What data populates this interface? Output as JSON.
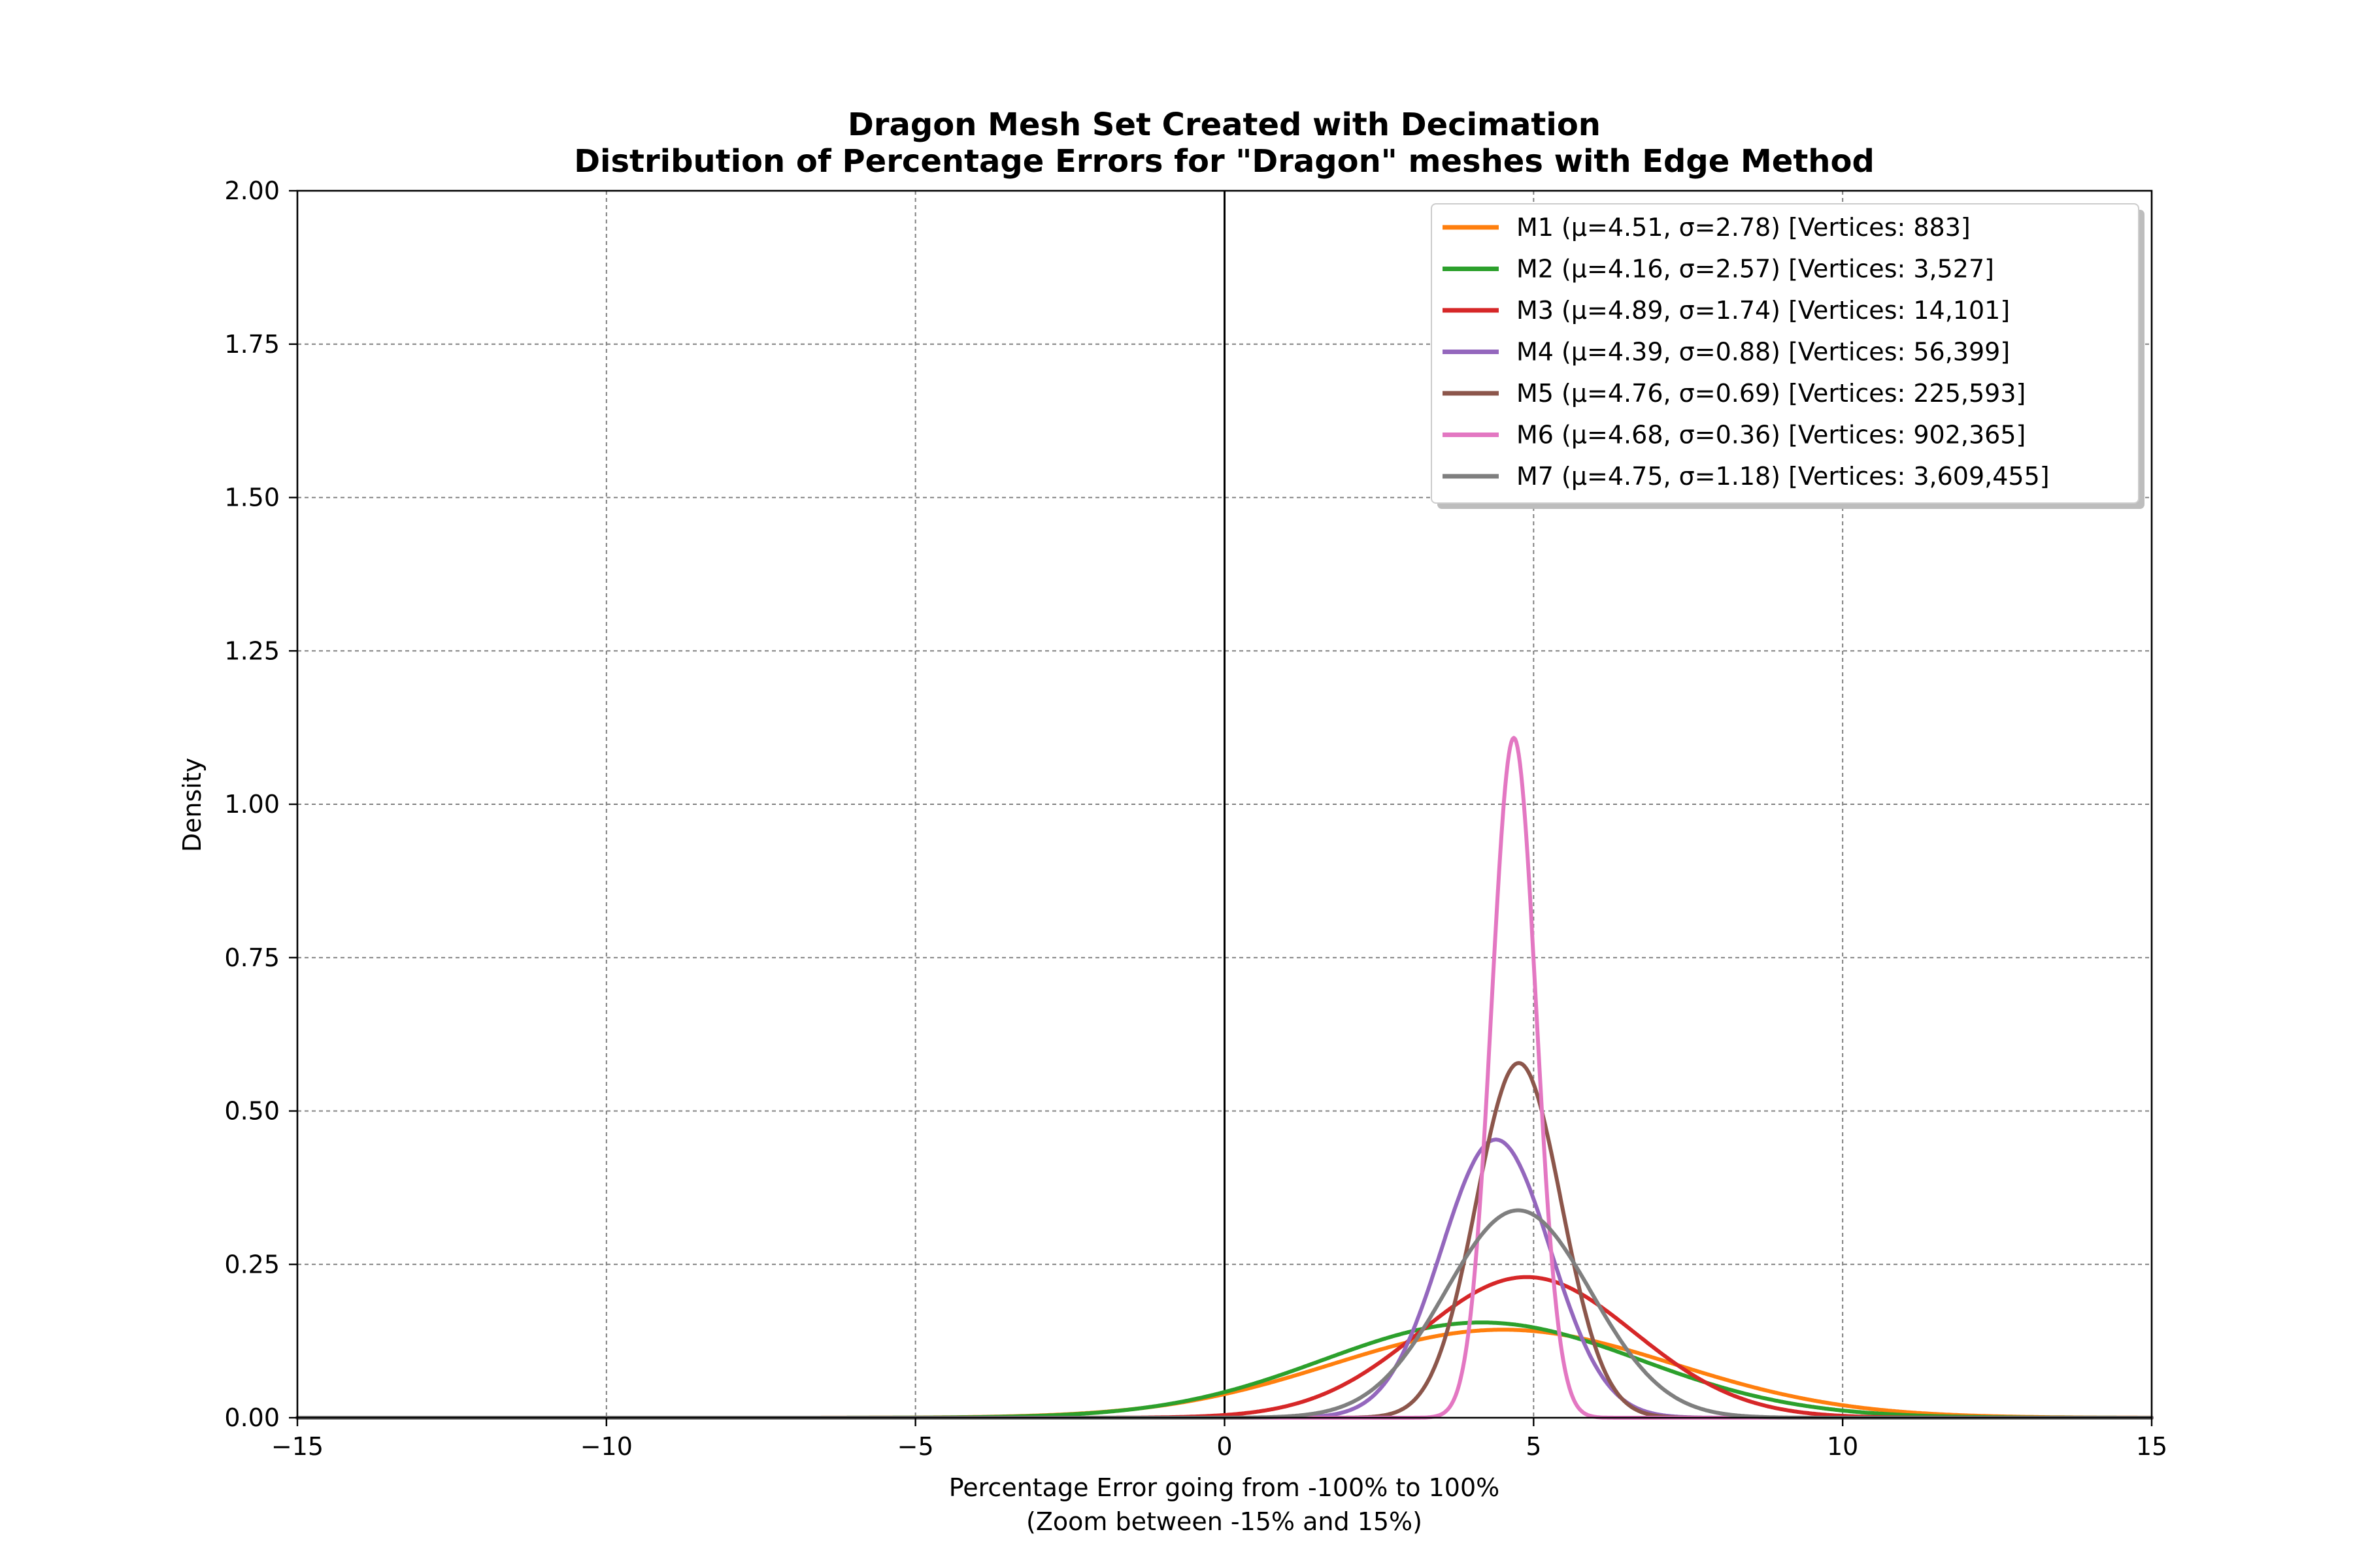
{
  "chart_data": {
    "type": "line",
    "title": "Dragon Mesh Set Created with Decimation",
    "subtitle": "Distribution of Percentage Errors for \"Dragon\" meshes with Edge Method",
    "xlabel": "Percentage Error going from -100% to 100%",
    "xlabel_sub": "(Zoom between -15% and 15%)",
    "ylabel": "Density",
    "xlim": [
      -15,
      15
    ],
    "ylim": [
      0,
      2.0
    ],
    "x_ticks": [
      -15,
      -10,
      -5,
      0,
      5,
      10,
      15
    ],
    "x_tick_labels": [
      "−15",
      "−10",
      "−5",
      "0",
      "5",
      "10",
      "15"
    ],
    "y_ticks": [
      0,
      0.25,
      0.5,
      0.75,
      1.0,
      1.25,
      1.5,
      1.75,
      2.0
    ],
    "y_tick_labels": [
      "0.00",
      "0.25",
      "0.50",
      "0.75",
      "1.00",
      "1.25",
      "1.50",
      "1.75",
      "2.00"
    ],
    "grid": true,
    "legend_position": "top-right",
    "vertical_line_x": 0,
    "series": [
      {
        "name": "M1 (μ=4.51, σ=2.78) [Vertices: 883]",
        "mu": 4.51,
        "sigma": 2.78,
        "color": "#ff7f0e"
      },
      {
        "name": "M2 (μ=4.16, σ=2.57) [Vertices: 3,527]",
        "mu": 4.16,
        "sigma": 2.57,
        "color": "#2ca02c"
      },
      {
        "name": "M3 (μ=4.89, σ=1.74) [Vertices: 14,101]",
        "mu": 4.89,
        "sigma": 1.74,
        "color": "#d62728"
      },
      {
        "name": "M4 (μ=4.39, σ=0.88) [Vertices: 56,399]",
        "mu": 4.39,
        "sigma": 0.88,
        "color": "#9467bd"
      },
      {
        "name": "M5 (μ=4.76, σ=0.69) [Vertices: 225,593]",
        "mu": 4.76,
        "sigma": 0.69,
        "color": "#8c564b"
      },
      {
        "name": "M6 (μ=4.68, σ=0.36) [Vertices: 902,365]",
        "mu": 4.68,
        "sigma": 0.36,
        "color": "#e377c2"
      },
      {
        "name": "M7 (μ=4.75, σ=1.18) [Vertices: 3,609,455]",
        "mu": 4.75,
        "sigma": 1.18,
        "color": "#7f7f7f"
      }
    ]
  }
}
